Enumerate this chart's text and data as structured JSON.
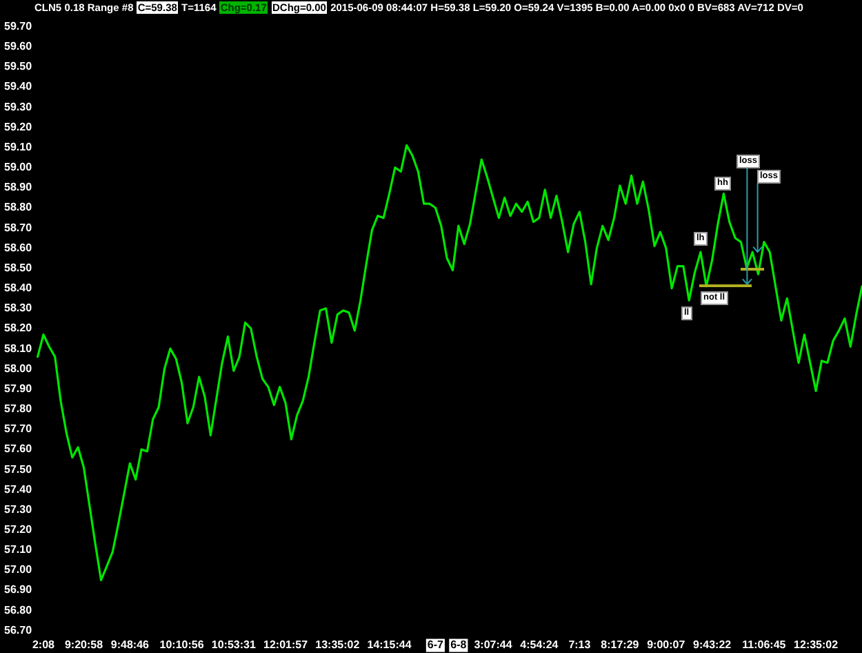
{
  "chart_data": {
    "type": "line",
    "title": "CLN5 0.18 Range #8 C=59.38 T=1164 Chg=0.17 DChg=0.00 2015-06-09 08:44:07 H=59.38 L=59.20 O=59.24 V=1395 B=0.00 A=0.00 0x0 0 BV=683 AV=712 DV=0",
    "categories": [
      null,
      "2:08",
      null,
      null,
      null,
      null,
      null,
      null,
      "9:20:58",
      null,
      null,
      null,
      null,
      null,
      null,
      null,
      "9:48:46",
      null,
      null,
      null,
      null,
      null,
      null,
      null,
      null,
      "10:10:56",
      null,
      null,
      null,
      null,
      null,
      null,
      null,
      null,
      "10:53:31",
      null,
      null,
      null,
      null,
      null,
      null,
      null,
      null,
      "12:01:57",
      null,
      null,
      null,
      null,
      null,
      null,
      null,
      null,
      "13:35:02",
      null,
      null,
      null,
      null,
      null,
      null,
      null,
      null,
      "14:15:44",
      null,
      null,
      null,
      null,
      null,
      null,
      null,
      "6-7",
      null,
      null,
      null,
      "6-8",
      null,
      null,
      null,
      null,
      null,
      "3:07:44",
      null,
      null,
      null,
      null,
      null,
      null,
      null,
      "4:54:24",
      null,
      null,
      null,
      null,
      null,
      null,
      "7:13",
      null,
      null,
      null,
      null,
      null,
      null,
      "8:17:29",
      null,
      null,
      null,
      null,
      null,
      null,
      null,
      "9:00:07",
      null,
      null,
      null,
      null,
      null,
      null,
      null,
      "9:43:22",
      null,
      null,
      null,
      null,
      null,
      null,
      null,
      null,
      "11:06:45",
      null,
      null,
      null,
      null,
      null,
      null,
      null,
      null,
      "12:35:02",
      null,
      null,
      null,
      null,
      null,
      null,
      null,
      null
    ],
    "values": [
      58.06,
      58.17,
      58.11,
      58.06,
      57.84,
      57.68,
      57.56,
      57.61,
      57.51,
      57.32,
      57.13,
      56.95,
      57.02,
      57.09,
      57.23,
      57.38,
      57.53,
      57.45,
      57.6,
      57.59,
      57.75,
      57.81,
      58.0,
      58.1,
      58.05,
      57.93,
      57.73,
      57.81,
      57.96,
      57.86,
      57.67,
      57.85,
      58.03,
      58.16,
      57.99,
      58.06,
      58.23,
      58.2,
      58.06,
      57.95,
      57.91,
      57.82,
      57.91,
      57.83,
      57.65,
      57.77,
      57.84,
      57.96,
      58.13,
      58.29,
      58.3,
      58.13,
      58.27,
      58.29,
      58.28,
      58.19,
      58.34,
      58.52,
      58.69,
      58.76,
      58.75,
      58.87,
      59.0,
      58.98,
      59.11,
      59.06,
      58.98,
      58.82,
      58.82,
      58.8,
      58.71,
      58.55,
      58.49,
      58.71,
      58.62,
      58.72,
      58.88,
      59.04,
      58.95,
      58.85,
      58.75,
      58.85,
      58.76,
      58.82,
      58.78,
      58.83,
      58.73,
      58.75,
      58.89,
      58.75,
      58.86,
      58.73,
      58.58,
      58.72,
      58.78,
      58.63,
      58.42,
      58.6,
      58.71,
      58.64,
      58.75,
      58.91,
      58.82,
      58.96,
      58.82,
      58.93,
      58.79,
      58.61,
      58.68,
      58.6,
      58.4,
      58.51,
      58.51,
      58.34,
      58.48,
      58.58,
      58.41,
      58.54,
      58.72,
      58.87,
      58.73,
      58.65,
      58.63,
      58.5,
      58.58,
      58.47,
      58.63,
      58.58,
      58.41,
      58.24,
      58.35,
      58.19,
      58.03,
      58.17,
      58.03,
      57.89,
      58.04,
      58.03,
      58.14,
      58.19,
      58.25,
      58.11,
      58.27,
      58.41
    ],
    "color": "#00e600",
    "ylim": [
      56.7,
      59.7
    ],
    "yticks": [
      {
        "value": 56.7,
        "label": "56.70"
      },
      {
        "value": 56.8,
        "label": "56.80"
      },
      {
        "value": 56.9,
        "label": "56.90"
      },
      {
        "value": 57.0,
        "label": "57.00"
      },
      {
        "value": 57.1,
        "label": "57.10"
      },
      {
        "value": 57.2,
        "label": "57.20"
      },
      {
        "value": 57.3,
        "label": "57.30"
      },
      {
        "value": 57.4,
        "label": "57.40"
      },
      {
        "value": 57.5,
        "label": "57.50"
      },
      {
        "value": 57.6,
        "label": "57.60"
      },
      {
        "value": 57.7,
        "label": "57.70"
      },
      {
        "value": 57.8,
        "label": "57.80"
      },
      {
        "value": 57.9,
        "label": "57.90"
      },
      {
        "value": 58.0,
        "label": "58.00"
      },
      {
        "value": 58.1,
        "label": "58.10"
      },
      {
        "value": 58.2,
        "label": "58.20"
      },
      {
        "value": 58.3,
        "label": "58.30"
      },
      {
        "value": 58.4,
        "label": "58.40"
      },
      {
        "value": 58.5,
        "label": "58.50"
      },
      {
        "value": 58.6,
        "label": "58.60"
      },
      {
        "value": 58.7,
        "label": "58.70"
      },
      {
        "value": 58.8,
        "label": "58.80"
      },
      {
        "value": 58.9,
        "label": "58.90"
      },
      {
        "value": 59.0,
        "label": "59.00"
      },
      {
        "value": 59.1,
        "label": "59.10"
      },
      {
        "value": 59.2,
        "label": "59.20"
      },
      {
        "value": 59.3,
        "label": "59.30"
      },
      {
        "value": 59.4,
        "label": "59.40"
      },
      {
        "value": 59.5,
        "label": "59.50"
      },
      {
        "value": 59.6,
        "label": "59.60"
      },
      {
        "value": 59.7,
        "label": "59.70"
      }
    ],
    "annotations": [
      "ll",
      "lh",
      "hh",
      "not ll",
      {
        "text": "loss",
        "y": 58.42
      },
      {
        "text": "loss",
        "y": 58.58
      }
    ]
  }
}
